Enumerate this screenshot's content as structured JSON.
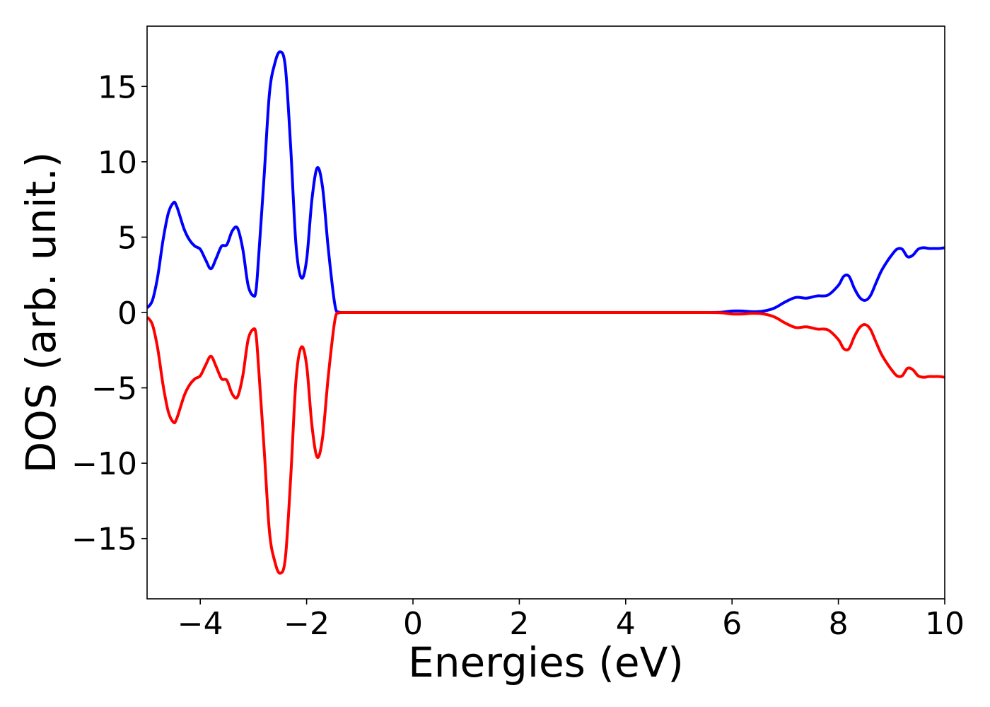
{
  "chart_data": {
    "type": "line",
    "title": "",
    "xlabel": "Energies (eV)",
    "ylabel": "DOS (arb. unit.)",
    "xlim": [
      -5,
      10
    ],
    "ylim": [
      -19,
      19
    ],
    "xticks": [
      -4,
      -2,
      0,
      2,
      4,
      6,
      8,
      10
    ],
    "yticks": [
      -15,
      -10,
      -5,
      0,
      5,
      10,
      15
    ],
    "xtick_labels": [
      "−4",
      "−2",
      "0",
      "2",
      "4",
      "6",
      "8",
      "10"
    ],
    "ytick_labels": [
      "−15",
      "−10",
      "−5",
      "0",
      "5",
      "10",
      "15"
    ],
    "grid": false,
    "legend": "none",
    "series": [
      {
        "color": "#0000ff",
        "x": [
          -5.0,
          -4.9,
          -4.8,
          -4.7,
          -4.6,
          -4.5,
          -4.45,
          -4.4,
          -4.3,
          -4.2,
          -4.1,
          -4.0,
          -3.9,
          -3.8,
          -3.7,
          -3.6,
          -3.5,
          -3.4,
          -3.3,
          -3.2,
          -3.1,
          -3.0,
          -2.95,
          -2.9,
          -2.8,
          -2.7,
          -2.6,
          -2.5,
          -2.4,
          -2.3,
          -2.2,
          -2.1,
          -2.0,
          -1.9,
          -1.8,
          -1.7,
          -1.6,
          -1.5,
          -1.45,
          -1.4,
          -1.3,
          -1.2,
          -1.1,
          -1.0,
          -0.9,
          -0.8,
          -0.7,
          -0.6,
          -0.5,
          0.0,
          1.0,
          2.0,
          3.0,
          4.0,
          5.0,
          5.5,
          5.8,
          6.0,
          6.2,
          6.4,
          6.6,
          6.8,
          7.0,
          7.2,
          7.4,
          7.6,
          7.8,
          8.0,
          8.1,
          8.2,
          8.3,
          8.4,
          8.5,
          8.6,
          8.7,
          8.8,
          8.9,
          9.0,
          9.1,
          9.2,
          9.3,
          9.4,
          9.5,
          9.6,
          9.7,
          9.8,
          9.9,
          10.0
        ],
        "values": [
          0.3,
          0.8,
          2.4,
          4.8,
          6.6,
          7.3,
          7.1,
          6.6,
          5.5,
          4.8,
          4.4,
          4.2,
          3.5,
          2.9,
          3.6,
          4.4,
          4.5,
          5.4,
          5.6,
          4.2,
          1.8,
          1.1,
          1.5,
          3.8,
          9.0,
          14.5,
          16.5,
          17.3,
          16.3,
          11.0,
          4.5,
          2.3,
          3.5,
          7.5,
          9.6,
          8.3,
          4.5,
          1.3,
          0.2,
          0.03,
          0.0,
          0.0,
          0.0,
          0.0,
          0.0,
          0.0,
          0.0,
          0.0,
          0.0,
          0.0,
          0.0,
          0.0,
          0.0,
          0.0,
          0.0,
          0.0,
          0.02,
          0.1,
          0.1,
          0.05,
          0.1,
          0.3,
          0.7,
          1.0,
          0.95,
          1.1,
          1.15,
          1.8,
          2.4,
          2.4,
          1.6,
          1.0,
          0.8,
          1.1,
          1.9,
          2.7,
          3.3,
          3.8,
          4.2,
          4.2,
          3.7,
          3.8,
          4.2,
          4.3,
          4.25,
          4.25,
          4.25,
          4.3
        ]
      },
      {
        "color": "#ff0000",
        "x": [
          -5.0,
          -4.9,
          -4.8,
          -4.7,
          -4.6,
          -4.5,
          -4.45,
          -4.4,
          -4.3,
          -4.2,
          -4.1,
          -4.0,
          -3.9,
          -3.8,
          -3.7,
          -3.6,
          -3.5,
          -3.4,
          -3.3,
          -3.2,
          -3.1,
          -3.0,
          -2.95,
          -2.9,
          -2.8,
          -2.7,
          -2.6,
          -2.5,
          -2.4,
          -2.3,
          -2.2,
          -2.1,
          -2.0,
          -1.9,
          -1.8,
          -1.7,
          -1.6,
          -1.5,
          -1.45,
          -1.4,
          -1.3,
          -1.2,
          -1.1,
          -1.0,
          -0.9,
          -0.8,
          -0.7,
          -0.6,
          -0.5,
          0.0,
          1.0,
          2.0,
          3.0,
          4.0,
          5.0,
          5.5,
          5.8,
          6.0,
          6.2,
          6.4,
          6.6,
          6.8,
          7.0,
          7.2,
          7.4,
          7.6,
          7.8,
          8.0,
          8.1,
          8.2,
          8.3,
          8.4,
          8.5,
          8.6,
          8.7,
          8.8,
          8.9,
          9.0,
          9.1,
          9.2,
          9.3,
          9.4,
          9.5,
          9.6,
          9.7,
          9.8,
          9.9,
          10.0
        ],
        "values": [
          -0.3,
          -0.8,
          -2.4,
          -4.8,
          -6.6,
          -7.3,
          -7.1,
          -6.6,
          -5.5,
          -4.8,
          -4.4,
          -4.2,
          -3.5,
          -2.9,
          -3.6,
          -4.4,
          -4.5,
          -5.4,
          -5.6,
          -4.2,
          -1.8,
          -1.1,
          -1.5,
          -3.8,
          -9.0,
          -14.5,
          -16.5,
          -17.3,
          -16.3,
          -11.0,
          -4.5,
          -2.3,
          -3.5,
          -7.5,
          -9.6,
          -8.3,
          -4.5,
          -1.3,
          -0.2,
          -0.03,
          0.0,
          0.0,
          0.0,
          0.0,
          0.0,
          0.0,
          0.0,
          0.0,
          0.0,
          0.0,
          0.0,
          0.0,
          0.0,
          0.0,
          0.0,
          0.0,
          -0.02,
          -0.1,
          -0.1,
          -0.05,
          -0.1,
          -0.3,
          -0.7,
          -1.0,
          -0.95,
          -1.1,
          -1.15,
          -1.8,
          -2.4,
          -2.4,
          -1.6,
          -1.0,
          -0.8,
          -1.1,
          -1.9,
          -2.7,
          -3.3,
          -3.8,
          -4.2,
          -4.2,
          -3.7,
          -3.8,
          -4.2,
          -4.3,
          -4.25,
          -4.25,
          -4.25,
          -4.3
        ]
      }
    ]
  }
}
